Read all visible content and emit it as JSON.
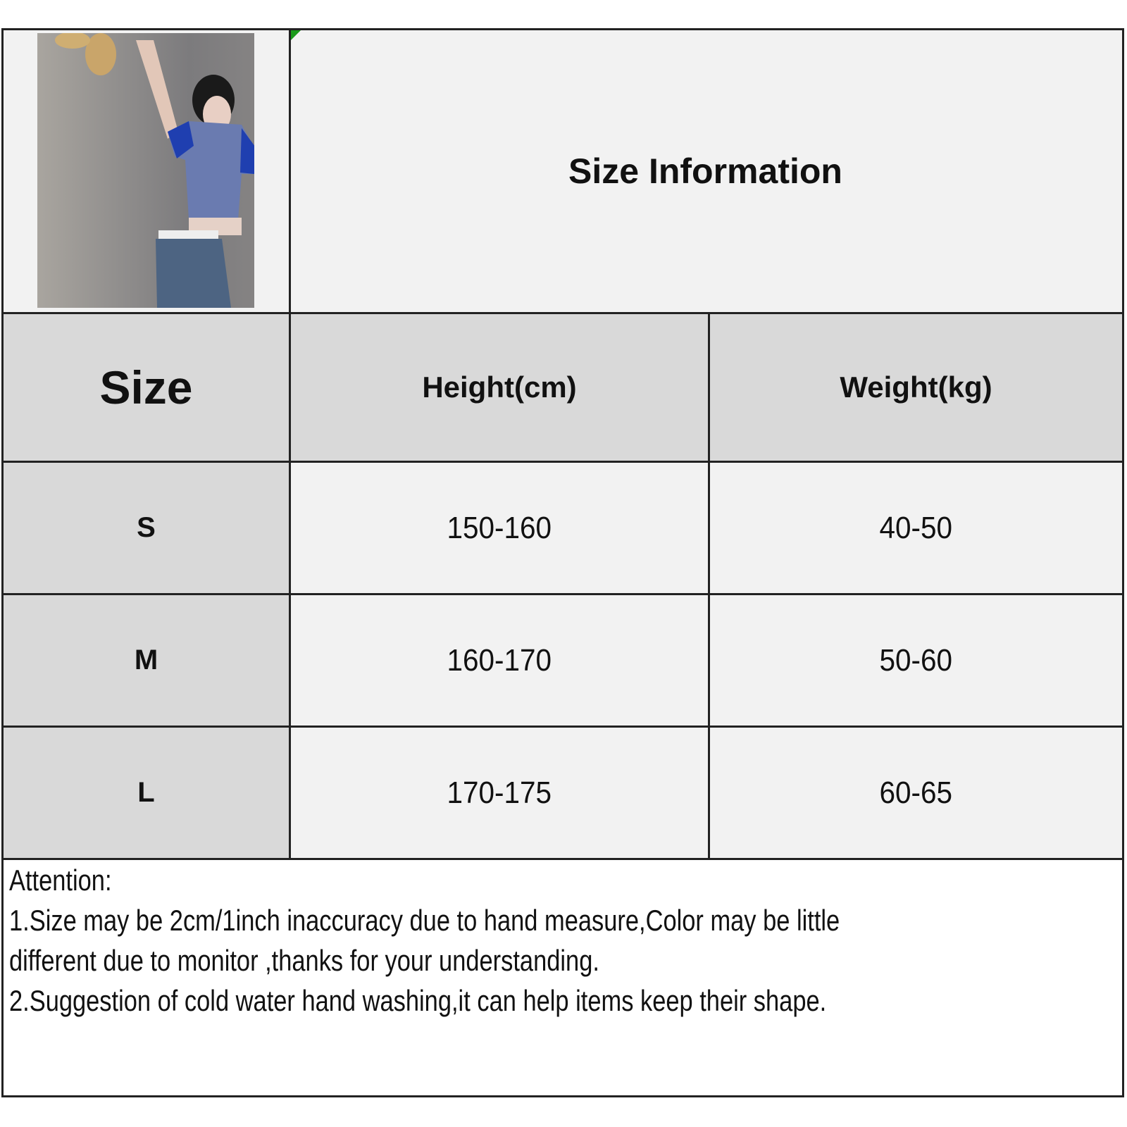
{
  "title": "Size Information",
  "headers": {
    "size": "Size",
    "height": "Height(cm)",
    "weight": "Weight(kg)"
  },
  "rows": [
    {
      "size": "S",
      "height": "150-160",
      "weight": "40-50"
    },
    {
      "size": "M",
      "height": "160-170",
      "weight": "50-60"
    },
    {
      "size": "L",
      "height": "170-175",
      "weight": "60-65"
    }
  ],
  "notes": {
    "heading": "Attention:",
    "line1": "1.Size may be 2cm/1inch inaccuracy due to hand measure,Color may be little",
    "line2": "different due to monitor ,thanks for your understanding.",
    "line3": "2.Suggestion of cold water hand washing,it can help items keep their shape."
  },
  "colors": {
    "header_bg": "#d9d9d9",
    "cell_bg": "#f2f2f2",
    "border": "#222222",
    "shirt": "#6a7bb0",
    "sleeve": "#1f3fb0",
    "jeans": "#4d6482"
  }
}
